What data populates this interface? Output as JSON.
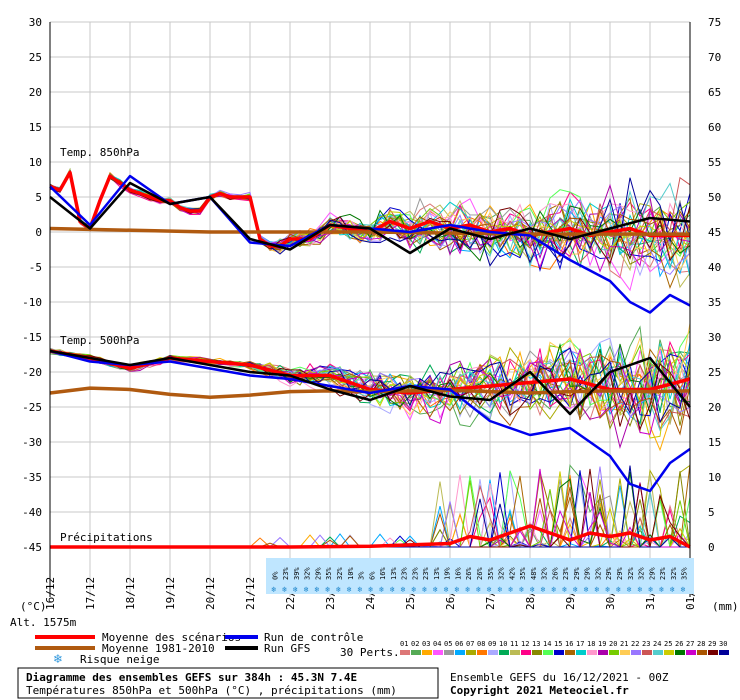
{
  "chart_data": {
    "type": "line",
    "title": "Diagramme des ensembles GEFS sur 384h : 45.3N 7.4E",
    "subtitle": "Températures 850hPa et 500hPa (°C) , précipitations (mm)",
    "run_label": "Ensemble GEFS du 16/12/2021 - 00Z",
    "copyright": "Copyright 2021 Meteociel.fr",
    "altitude": "Alt. 1575m",
    "left_unit": "(°C)",
    "right_unit": "(mm)",
    "left_ticks": [
      30,
      25,
      20,
      15,
      10,
      5,
      0,
      -5,
      -10,
      -15,
      -20,
      -25,
      -30,
      -35,
      -40,
      -45
    ],
    "right_ticks": [
      75,
      70,
      65,
      60,
      55,
      50,
      45,
      40,
      35,
      30,
      25,
      20,
      15,
      10,
      5,
      0
    ],
    "x_labels": [
      "16/12",
      "17/12",
      "18/12",
      "19/12",
      "20/12",
      "21/12",
      "22/12",
      "23/12",
      "24/12",
      "25/12",
      "26/12",
      "27/12",
      "28/12",
      "29/12",
      "30/12",
      "31/12",
      "01/01"
    ],
    "section_labels": {
      "t850": "Temp. 850hPa",
      "t500": "Temp. 500hPa",
      "precip": "Précipitations"
    },
    "snow_risk_percent": [
      "0%",
      "23%",
      "39%",
      "32%",
      "29%",
      "35%",
      "32%",
      "10%",
      "3%",
      "6%",
      "16%",
      "13%",
      "23%",
      "23%",
      "23%",
      "13%",
      "19%",
      "16%",
      "26%",
      "26%",
      "35%",
      "32%",
      "42%",
      "35%",
      "48%",
      "32%",
      "26%",
      "23%",
      "29%",
      "29%",
      "32%",
      "29%",
      "29%",
      "32%",
      "32%",
      "29%",
      "23%",
      "32%",
      "35%"
    ],
    "legend": {
      "mean": "Moyenne des scénarios",
      "climo": "Moyenne 1981-2010",
      "snow": "Risque neige",
      "control": "Run de contrôle",
      "gfs": "Run GFS",
      "perts_label": "30 Perts."
    },
    "perturbation_ids": [
      "01",
      "02",
      "03",
      "04",
      "05",
      "06",
      "07",
      "08",
      "09",
      "10",
      "11",
      "12",
      "13",
      "14",
      "15",
      "16",
      "17",
      "18",
      "19",
      "20",
      "21",
      "22",
      "23",
      "24",
      "25",
      "26",
      "27",
      "28",
      "29",
      "30"
    ],
    "perturbation_colors": [
      "#dd7777",
      "#55aa55",
      "#ffaa00",
      "#ff55ff",
      "#999999",
      "#00aaff",
      "#aaaa00",
      "#ff7700",
      "#aaaaff",
      "#00aa55",
      "#bbbb55",
      "#ff0088",
      "#888800",
      "#55ff55",
      "#0000cc",
      "#aa6600",
      "#00cccc",
      "#ff99cc",
      "#aa00aa",
      "#77cc00",
      "#ffcc55",
      "#9977ff",
      "#cc5555",
      "#55cccc",
      "#cccc00",
      "#007700",
      "#cc00cc",
      "#aa5500",
      "#770000",
      "#000099"
    ],
    "series": [
      {
        "name": "Moyenne des scénarios",
        "level": "850",
        "color": "#ff0000",
        "x": [
          0,
          0.25,
          0.5,
          0.75,
          1,
          1.25,
          1.5,
          1.75,
          2,
          2.25,
          2.5,
          2.75,
          3,
          3.25,
          3.5,
          3.75,
          4,
          4.25,
          4.5,
          4.75,
          5,
          5.25,
          5.5,
          5.75,
          6,
          6.5,
          7,
          7.5,
          8,
          8.5,
          9,
          9.5,
          10,
          10.5,
          11,
          11.5,
          12,
          12.5,
          13,
          13.5,
          14,
          14.5,
          15,
          15.5,
          16
        ],
        "values": [
          6.5,
          6,
          8.5,
          1.5,
          0.5,
          4.5,
          8,
          7,
          6,
          5.5,
          5,
          4.5,
          4.5,
          3.5,
          3,
          3,
          5,
          5.5,
          5,
          5,
          5,
          -1,
          -2,
          -2,
          -1,
          -1,
          1,
          0.5,
          0,
          1.5,
          0.5,
          1.5,
          0.5,
          1,
          0,
          0.5,
          -0.5,
          0,
          0.5,
          -0.5,
          0,
          0.5,
          -0.5,
          -0.5,
          -0.5
        ]
      },
      {
        "name": "Moyenne 1981-2010",
        "level": "850",
        "color": "#b05a10",
        "x": [
          0,
          4,
          8,
          12,
          16
        ],
        "values": [
          0.5,
          0,
          0,
          -0.3,
          -0.3
        ]
      },
      {
        "name": "Moyenne des scénarios",
        "level": "500",
        "color": "#ff0000",
        "x": [
          0,
          1,
          2,
          3,
          4,
          5,
          6,
          7,
          8,
          9,
          10,
          11,
          12,
          13,
          14,
          15,
          16
        ],
        "values": [
          -17,
          -18,
          -19.5,
          -18,
          -18.5,
          -19,
          -20.5,
          -20.5,
          -22.5,
          -23,
          -22.5,
          -22,
          -21.5,
          -21,
          -22.5,
          -22.5,
          -21
        ]
      },
      {
        "name": "Moyenne 1981-2010",
        "level": "500",
        "color": "#b05a10",
        "x": [
          0,
          1,
          2,
          3,
          4,
          5,
          6,
          7,
          8,
          9,
          10,
          11,
          12,
          13,
          14,
          15,
          16
        ],
        "values": [
          -23,
          -22.3,
          -22.5,
          -23.2,
          -23.6,
          -23.3,
          -22.8,
          -22.7,
          -22.8,
          -22.7,
          -22.6,
          -22.8,
          -23,
          -22.8,
          -22.7,
          -22.8,
          -22.7
        ]
      },
      {
        "name": "Run de contrôle",
        "level": "850",
        "color": "#0000ee",
        "x": [
          0,
          1,
          2,
          3,
          4,
          5,
          6,
          7,
          8,
          9,
          10,
          11,
          12,
          13,
          14,
          14.5,
          15,
          15.5,
          16
        ],
        "values": [
          6.5,
          1,
          8,
          4,
          5,
          -1.5,
          -2,
          1,
          0.5,
          0,
          1,
          0,
          -0.5,
          -4,
          -7,
          -10,
          -11.5,
          -9,
          -10.5
        ]
      },
      {
        "name": "Run de contrôle",
        "level": "500",
        "color": "#0000ee",
        "x": [
          0,
          1,
          2,
          3,
          4,
          5,
          6,
          7,
          8,
          9,
          10,
          11,
          12,
          13,
          14,
          14.5,
          15,
          15.5,
          16
        ],
        "values": [
          -17,
          -18.5,
          -19,
          -18.5,
          -19.5,
          -20.5,
          -21,
          -22,
          -23,
          -22,
          -22.5,
          -27,
          -29,
          -28,
          -32,
          -36,
          -37,
          -33,
          -31
        ]
      },
      {
        "name": "Run GFS",
        "level": "850",
        "color": "#000000",
        "x": [
          0,
          1,
          2,
          3,
          4,
          5,
          6,
          7,
          8,
          9,
          10,
          11,
          12,
          13,
          14,
          15,
          16
        ],
        "values": [
          5,
          0.5,
          7,
          4,
          5,
          -1,
          -2.5,
          1,
          0.5,
          -3,
          0.5,
          -1,
          0.5,
          -1,
          0.5,
          2,
          1.5
        ]
      },
      {
        "name": "Run GFS",
        "level": "500",
        "color": "#000000",
        "x": [
          0,
          1,
          2,
          3,
          4,
          5,
          6,
          7,
          8,
          9,
          10,
          11,
          12,
          13,
          14,
          15,
          16
        ],
        "values": [
          -17,
          -18,
          -19,
          -18,
          -19,
          -20,
          -20.5,
          -22.5,
          -24,
          -22,
          -23.5,
          -24,
          -20,
          -26,
          -20,
          -18,
          -25
        ]
      },
      {
        "name": "Moyenne des scénarios",
        "level": "precip",
        "color": "#ff0000",
        "x": [
          0,
          2,
          4,
          6,
          8,
          9,
          10,
          10.5,
          11,
          11.5,
          12,
          12.5,
          13,
          13.5,
          14,
          14.5,
          15,
          15.5,
          16
        ],
        "values": [
          0,
          0,
          0,
          0,
          0.1,
          0.3,
          0.5,
          1.5,
          1,
          2,
          3,
          2,
          1,
          2,
          1.5,
          2,
          1,
          1.5,
          0
        ]
      }
    ],
    "xlim": [
      0,
      16
    ],
    "ylim_left": [
      -45,
      30
    ],
    "ylim_right_mm": [
      0,
      75
    ],
    "grid": true
  }
}
